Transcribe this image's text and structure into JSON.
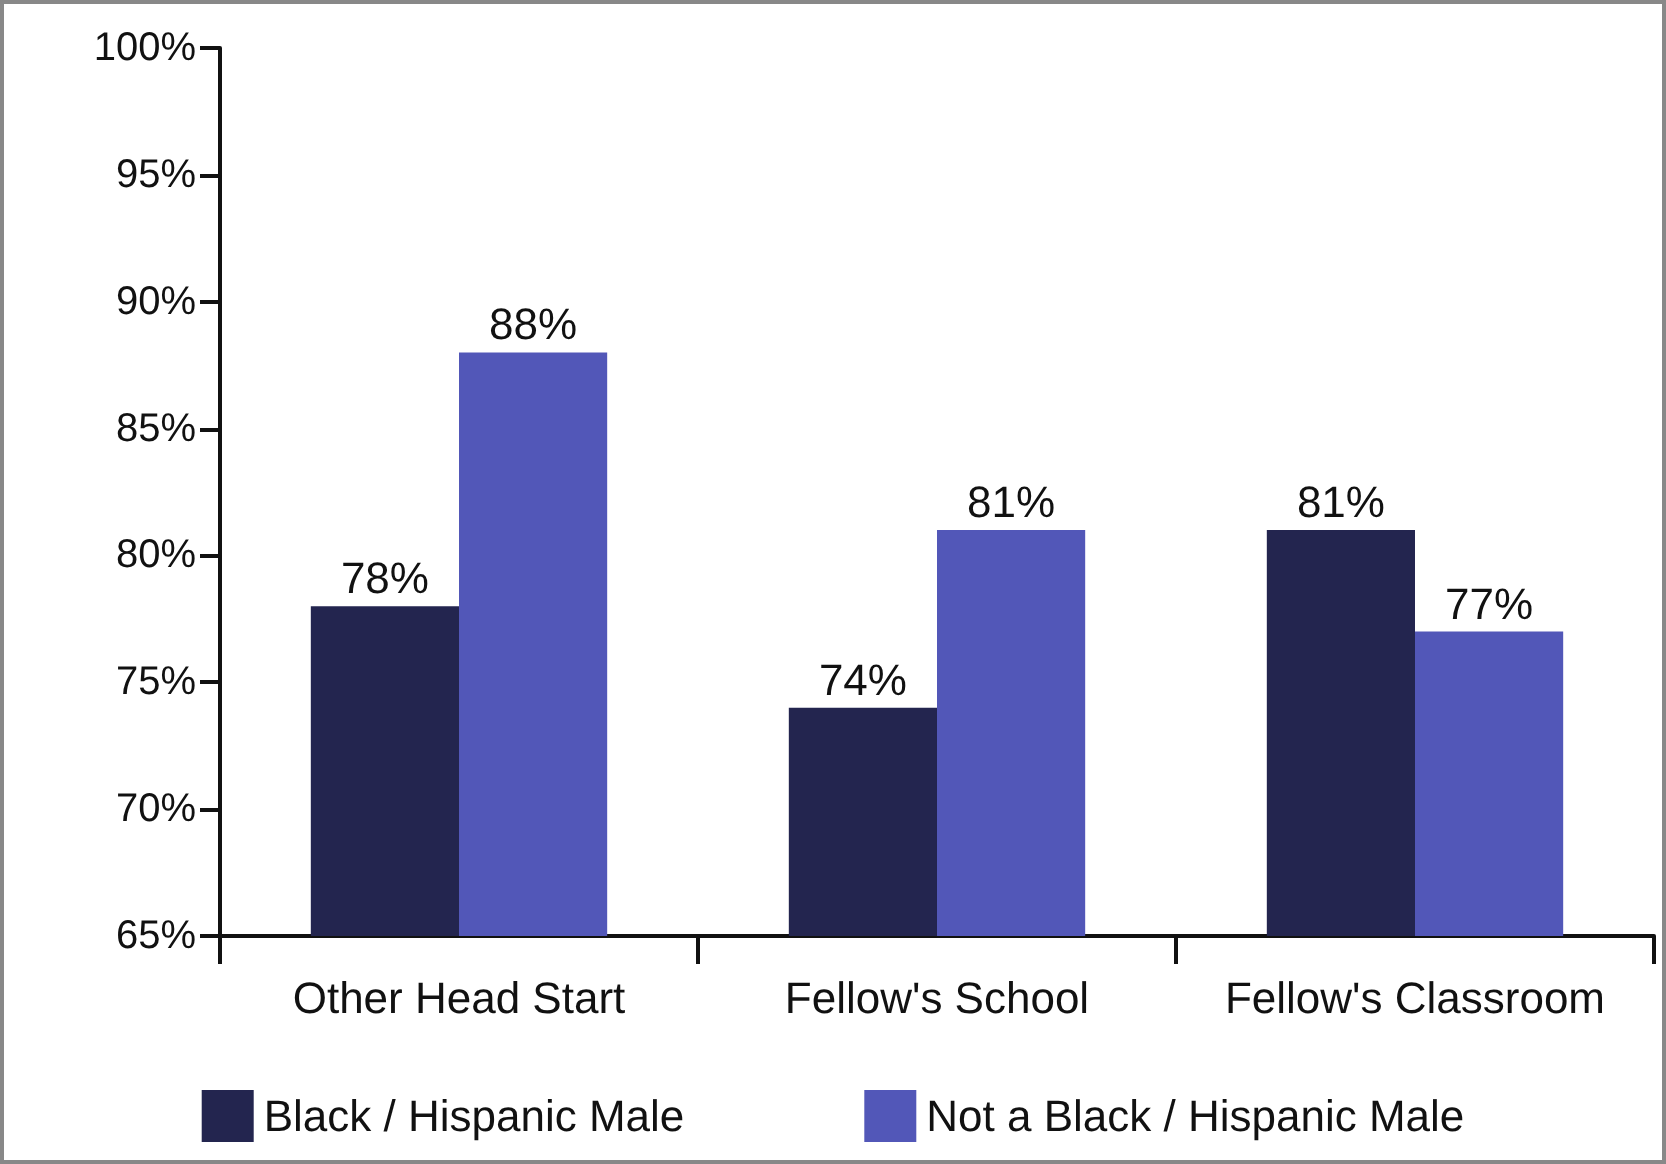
{
  "chart_data": {
    "type": "bar",
    "categories": [
      "Other Head Start",
      "Fellow's School",
      "Fellow's Classroom"
    ],
    "series": [
      {
        "name": "Black / Hispanic Male",
        "color": "#23254f",
        "values": [
          78,
          74,
          81
        ],
        "value_labels": [
          "78%",
          "74%",
          "81%"
        ]
      },
      {
        "name": "Not a Black / Hispanic Male",
        "color": "#5257b8",
        "values": [
          88,
          81,
          77
        ],
        "value_labels": [
          "88%",
          "81%",
          "77%"
        ]
      }
    ],
    "ylim": [
      65,
      100
    ],
    "yticks": [
      {
        "value": 65,
        "label": "65%"
      },
      {
        "value": 70,
        "label": "70%"
      },
      {
        "value": 75,
        "label": "75%"
      },
      {
        "value": 80,
        "label": "80%"
      },
      {
        "value": 85,
        "label": "85%"
      },
      {
        "value": 90,
        "label": "90%"
      },
      {
        "value": 95,
        "label": "95%"
      },
      {
        "value": 100,
        "label": "100%"
      }
    ],
    "grid": false,
    "legend": "bottom"
  }
}
